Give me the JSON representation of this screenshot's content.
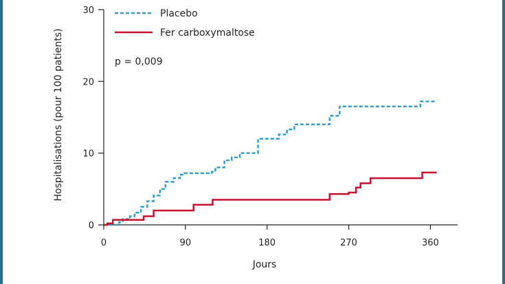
{
  "chart_data": {
    "type": "line",
    "title": "",
    "xlabel": "Jours",
    "ylabel": "Hospitalisations (pour 100 patients)",
    "xlim": [
      0,
      390
    ],
    "ylim": [
      0,
      30
    ],
    "x_ticks": [
      0,
      90,
      180,
      270,
      360
    ],
    "x_tick_labels": [
      "0",
      "90",
      "180",
      "270",
      "360"
    ],
    "y_ticks": [
      0,
      10,
      20,
      30
    ],
    "y_tick_labels": [
      "0",
      "10",
      "20",
      "30"
    ],
    "grid": false,
    "legend_position": "top-left",
    "annotation": "p = 0,009",
    "series": [
      {
        "name": "Placebo",
        "color": "#2e9fd0",
        "style": "dashed",
        "step": true,
        "points": [
          [
            0,
            0
          ],
          [
            14,
            0
          ],
          [
            17,
            0.4
          ],
          [
            21,
            0.8
          ],
          [
            29,
            1.2
          ],
          [
            34,
            1.7
          ],
          [
            41,
            2.5
          ],
          [
            48,
            3.3
          ],
          [
            55,
            4.1
          ],
          [
            62,
            5.0
          ],
          [
            68,
            6.0
          ],
          [
            77,
            6.5
          ],
          [
            84,
            7.0
          ],
          [
            89,
            7.2
          ],
          [
            119,
            7.4
          ],
          [
            123,
            8.0
          ],
          [
            133,
            9.0
          ],
          [
            141,
            9.4
          ],
          [
            150,
            10.0
          ],
          [
            170,
            12.0
          ],
          [
            193,
            12.6
          ],
          [
            202,
            13.3
          ],
          [
            210,
            14.0
          ],
          [
            249,
            15.2
          ],
          [
            260,
            16.5
          ],
          [
            349,
            17.2
          ],
          [
            366,
            17.2
          ]
        ]
      },
      {
        "name": "Fer carboxymaltose",
        "color": "#c8102e",
        "style": "solid",
        "step": true,
        "points": [
          [
            0,
            0
          ],
          [
            4,
            0.2
          ],
          [
            10,
            0.7
          ],
          [
            23,
            0.7
          ],
          [
            44,
            1.2
          ],
          [
            55,
            2.0
          ],
          [
            99,
            2.8
          ],
          [
            120,
            3.5
          ],
          [
            249,
            4.3
          ],
          [
            270,
            4.5
          ],
          [
            278,
            5.2
          ],
          [
            283,
            5.8
          ],
          [
            294,
            6.5
          ],
          [
            351,
            7.3
          ],
          [
            367,
            7.3
          ]
        ]
      }
    ]
  }
}
